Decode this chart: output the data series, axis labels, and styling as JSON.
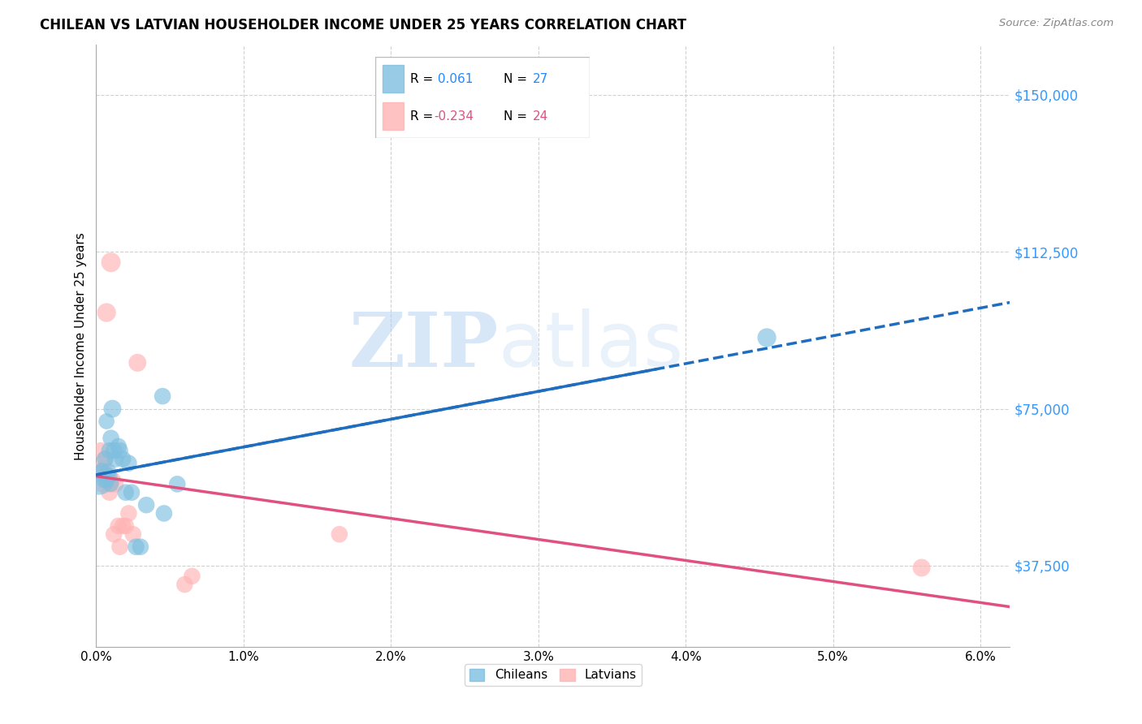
{
  "title": "CHILEAN VS LATVIAN HOUSEHOLDER INCOME UNDER 25 YEARS CORRELATION CHART",
  "source": "Source: ZipAtlas.com",
  "ylabel": "Householder Income Under 25 years",
  "xlim": [
    0.0,
    0.062
  ],
  "ylim": [
    18000,
    162000
  ],
  "yticks": [
    37500,
    75000,
    112500,
    150000
  ],
  "ytick_labels": [
    "$37,500",
    "$75,000",
    "$112,500",
    "$150,000"
  ],
  "xtick_labels": [
    "0.0%",
    "1.0%",
    "2.0%",
    "3.0%",
    "4.0%",
    "5.0%",
    "6.0%"
  ],
  "xticks": [
    0.0,
    0.01,
    0.02,
    0.03,
    0.04,
    0.05,
    0.06
  ],
  "chilean_color": "#7fbfdf",
  "latvian_color": "#ffb3b3",
  "chilean_line_color": "#1f6dbf",
  "latvian_line_color": "#e05080",
  "watermark_zip": "ZIP",
  "watermark_atlas": "atlas",
  "chilean_x": [
    0.0002,
    0.0004,
    0.0005,
    0.0006,
    0.0007,
    0.0007,
    0.0008,
    0.0009,
    0.0009,
    0.001,
    0.001,
    0.0011,
    0.0012,
    0.0013,
    0.0015,
    0.0016,
    0.0018,
    0.002,
    0.0022,
    0.0024,
    0.0027,
    0.003,
    0.0034,
    0.0045,
    0.0046,
    0.0055,
    0.0455
  ],
  "chilean_y": [
    58000,
    60000,
    58000,
    63000,
    58000,
    72000,
    60000,
    65000,
    59000,
    68000,
    57000,
    75000,
    65000,
    63000,
    66000,
    65000,
    63000,
    55000,
    62000,
    55000,
    42000,
    42000,
    52000,
    78000,
    50000,
    57000,
    92000
  ],
  "chilean_size": [
    700,
    250,
    200,
    220,
    200,
    200,
    220,
    220,
    200,
    220,
    200,
    250,
    220,
    220,
    220,
    220,
    220,
    220,
    220,
    220,
    220,
    220,
    220,
    220,
    220,
    220,
    280
  ],
  "latvian_x": [
    0.0002,
    0.0003,
    0.0004,
    0.0005,
    0.0006,
    0.0007,
    0.0008,
    0.0009,
    0.0009,
    0.001,
    0.0011,
    0.0012,
    0.0013,
    0.0015,
    0.0016,
    0.0018,
    0.002,
    0.0022,
    0.0025,
    0.0028,
    0.006,
    0.0065,
    0.0165,
    0.056
  ],
  "latvian_y": [
    60000,
    65000,
    57000,
    61000,
    63000,
    98000,
    58000,
    55000,
    57000,
    110000,
    58000,
    45000,
    57000,
    47000,
    42000,
    47000,
    47000,
    50000,
    45000,
    86000,
    33000,
    35000,
    45000,
    37000
  ],
  "latvian_size": [
    220,
    220,
    220,
    220,
    220,
    280,
    220,
    220,
    220,
    300,
    220,
    220,
    220,
    220,
    220,
    220,
    220,
    220,
    220,
    250,
    220,
    220,
    220,
    250
  ]
}
